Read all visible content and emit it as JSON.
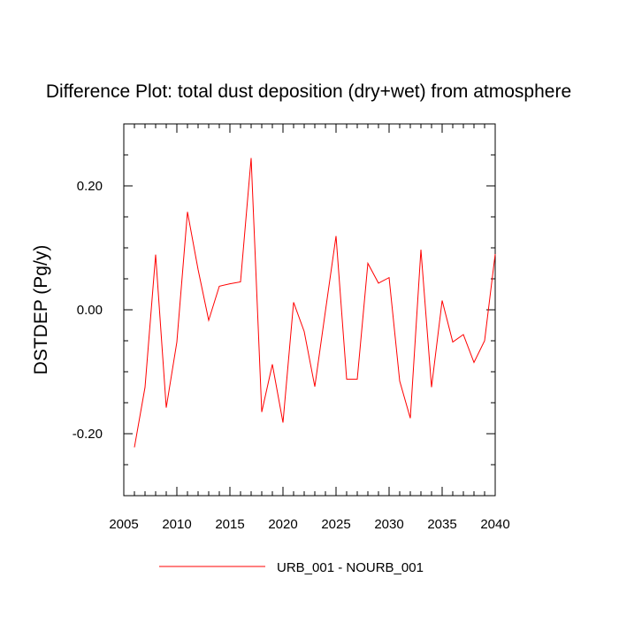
{
  "chart_data": {
    "type": "line",
    "title": "Difference Plot: total dust deposition (dry+wet) from atmosphere",
    "xlabel": "",
    "ylabel": "DSTDEP  (Pg/y)",
    "xlim": [
      2005,
      2040
    ],
    "ylim": [
      -0.3,
      0.3
    ],
    "xticks": [
      2005,
      2010,
      2015,
      2020,
      2025,
      2030,
      2035,
      2040
    ],
    "xtick_labels": [
      "2005",
      "2010",
      "2015",
      "2020",
      "2025",
      "2030",
      "2035",
      "2040"
    ],
    "yticks": [
      -0.2,
      0.0,
      0.2
    ],
    "ytick_labels": [
      "-0.20",
      "0.00",
      "0.20"
    ],
    "grid": false,
    "legend_position": "bottom-center",
    "series": [
      {
        "name": "URB_001 - NOURB_001",
        "color": "#ff0000",
        "x": [
          2006,
          2007,
          2008,
          2009,
          2010,
          2011,
          2012,
          2013,
          2014,
          2015,
          2016,
          2017,
          2018,
          2019,
          2020,
          2021,
          2022,
          2023,
          2024,
          2025,
          2026,
          2027,
          2028,
          2029,
          2030,
          2031,
          2032,
          2033,
          2034,
          2035,
          2036,
          2037,
          2038,
          2039,
          2040
        ],
        "y": [
          -0.222,
          -0.125,
          0.089,
          -0.158,
          -0.052,
          0.158,
          0.065,
          -0.017,
          0.038,
          0.042,
          0.045,
          0.245,
          -0.165,
          -0.088,
          -0.182,
          0.012,
          -0.035,
          -0.124,
          -0.002,
          0.119,
          -0.112,
          -0.112,
          0.075,
          0.043,
          0.052,
          -0.115,
          -0.175,
          0.097,
          -0.125,
          0.015,
          -0.052,
          -0.04,
          -0.085,
          -0.05,
          0.09
        ]
      }
    ]
  }
}
